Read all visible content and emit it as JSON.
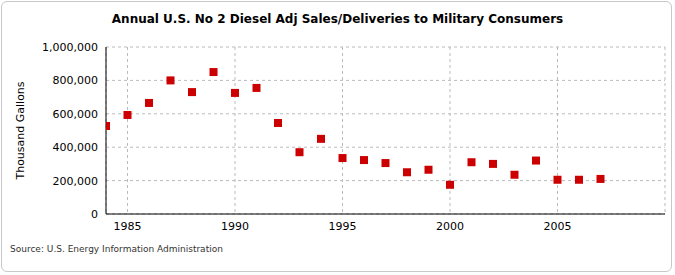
{
  "chart_data": {
    "type": "scatter",
    "title": "Annual U.S. No 2 Diesel Adj Sales/Deliveries to Military Consumers",
    "source": "Source: U.S. Energy Information Administration",
    "y_label": "Thousand Gallons",
    "x": [
      1984,
      1985,
      1986,
      1987,
      1988,
      1989,
      1990,
      1991,
      1992,
      1993,
      1994,
      1995,
      1996,
      1997,
      1998,
      1999,
      2000,
      2001,
      2002,
      2003,
      2004,
      2005,
      2006,
      2007
    ],
    "values": [
      527000,
      593000,
      665000,
      800000,
      730000,
      850000,
      725000,
      755000,
      545000,
      370000,
      450000,
      335000,
      323000,
      305000,
      250000,
      265000,
      175000,
      310000,
      300000,
      235000,
      320000,
      205000,
      205000,
      210000
    ],
    "color": "#cc0000",
    "marker": "square",
    "xlim": [
      1984,
      2010
    ],
    "xticks": [
      1985,
      1990,
      1995,
      2000,
      2005
    ],
    "ylim": [
      0,
      1000000
    ],
    "yticks": [
      0,
      {
        "value": 200000,
        "label": "200,000"
      },
      {
        "value": 400000,
        "label": "400,000"
      },
      {
        "value": 600000,
        "label": "600,000"
      },
      {
        "value": 800000,
        "label": "800,000"
      },
      {
        "value": 1000000,
        "label": "1,000,000"
      }
    ],
    "grid": true
  }
}
